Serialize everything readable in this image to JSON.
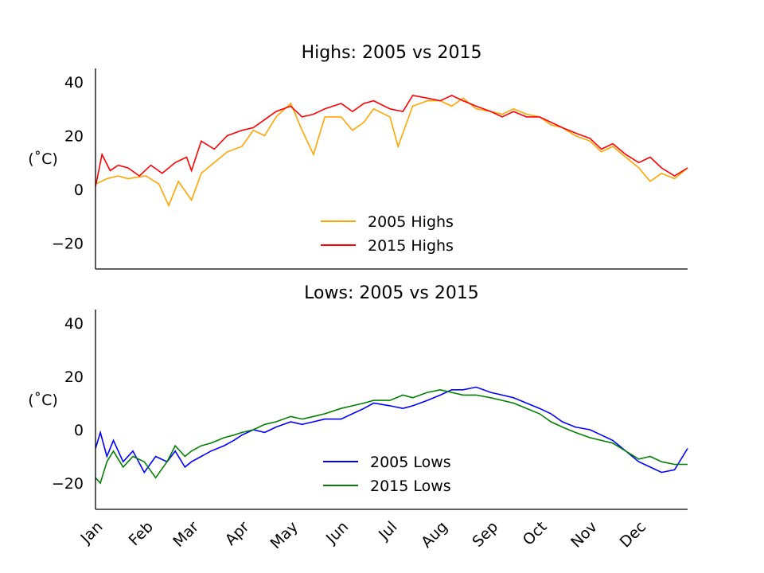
{
  "chart_data": [
    {
      "type": "line",
      "title": "Highs: 2005 vs 2015",
      "ylabel": "(˚C)",
      "ylim": [
        -30,
        45
      ],
      "yticks": [
        -20,
        0,
        20,
        40
      ],
      "ytick_labels": [
        "−20",
        "0",
        "20",
        "40"
      ],
      "grid": false,
      "legend_position": "lower-center",
      "series": [
        {
          "name": "2005 Highs",
          "color": "#FFA500",
          "x": [
            1,
            15,
            32,
            46,
            60,
            74,
            91,
            105,
            121,
            135,
            152,
            166,
            182,
            196,
            213,
            227,
            244,
            258,
            274,
            288,
            305,
            319,
            335,
            349,
            365
          ],
          "values": [
            2,
            5,
            5,
            3,
            3,
            10,
            15,
            20,
            25,
            22,
            27,
            27,
            29,
            30,
            31,
            32,
            30,
            28,
            27,
            24,
            20,
            15,
            10,
            5,
            5
          ],
          "points": [
            [
              1,
              2
            ],
            [
              8,
              4
            ],
            [
              15,
              5
            ],
            [
              21,
              4
            ],
            [
              32,
              5
            ],
            [
              40,
              2
            ],
            [
              46,
              -6
            ],
            [
              52,
              3
            ],
            [
              60,
              -4
            ],
            [
              66,
              6
            ],
            [
              74,
              10
            ],
            [
              82,
              14
            ],
            [
              91,
              16
            ],
            [
              98,
              22
            ],
            [
              105,
              20
            ],
            [
              112,
              27
            ],
            [
              121,
              32
            ],
            [
              128,
              22
            ],
            [
              135,
              13
            ],
            [
              142,
              27
            ],
            [
              152,
              27
            ],
            [
              159,
              22
            ],
            [
              166,
              25
            ],
            [
              172,
              30
            ],
            [
              182,
              27
            ],
            [
              187,
              16
            ],
            [
              196,
              31
            ],
            [
              205,
              33
            ],
            [
              213,
              33
            ],
            [
              220,
              31
            ],
            [
              227,
              34
            ],
            [
              235,
              30
            ],
            [
              244,
              29
            ],
            [
              251,
              28
            ],
            [
              258,
              30
            ],
            [
              266,
              28
            ],
            [
              274,
              27
            ],
            [
              281,
              24
            ],
            [
              288,
              23
            ],
            [
              296,
              20
            ],
            [
              305,
              18
            ],
            [
              312,
              14
            ],
            [
              319,
              16
            ],
            [
              327,
              12
            ],
            [
              335,
              8
            ],
            [
              342,
              3
            ],
            [
              349,
              6
            ],
            [
              357,
              4
            ],
            [
              365,
              8
            ]
          ]
        },
        {
          "name": "2015 Highs",
          "color": "#FF0000",
          "x": [
            1,
            15,
            32,
            46,
            60,
            74,
            91,
            105,
            121,
            135,
            152,
            166,
            182,
            196,
            213,
            227,
            244,
            258,
            274,
            288,
            305,
            319,
            335,
            349,
            365
          ],
          "values": [
            5,
            8,
            6,
            8,
            9,
            14,
            20,
            23,
            28,
            28,
            30,
            31,
            32,
            33,
            33,
            32,
            30,
            28,
            26,
            23,
            19,
            15,
            12,
            8,
            7
          ],
          "points": [
            [
              1,
              1
            ],
            [
              5,
              13
            ],
            [
              10,
              7
            ],
            [
              15,
              9
            ],
            [
              21,
              8
            ],
            [
              28,
              5
            ],
            [
              35,
              9
            ],
            [
              42,
              6
            ],
            [
              50,
              10
            ],
            [
              57,
              12
            ],
            [
              60,
              7
            ],
            [
              66,
              18
            ],
            [
              74,
              15
            ],
            [
              82,
              20
            ],
            [
              91,
              22
            ],
            [
              98,
              23
            ],
            [
              105,
              26
            ],
            [
              112,
              29
            ],
            [
              121,
              31
            ],
            [
              128,
              27
            ],
            [
              135,
              28
            ],
            [
              142,
              30
            ],
            [
              152,
              32
            ],
            [
              159,
              29
            ],
            [
              166,
              32
            ],
            [
              172,
              33
            ],
            [
              182,
              30
            ],
            [
              190,
              29
            ],
            [
              196,
              35
            ],
            [
              205,
              34
            ],
            [
              213,
              33
            ],
            [
              220,
              35
            ],
            [
              227,
              33
            ],
            [
              235,
              31
            ],
            [
              244,
              29
            ],
            [
              251,
              27
            ],
            [
              258,
              29
            ],
            [
              266,
              27
            ],
            [
              274,
              27
            ],
            [
              281,
              25
            ],
            [
              288,
              23
            ],
            [
              296,
              21
            ],
            [
              305,
              19
            ],
            [
              312,
              15
            ],
            [
              319,
              17
            ],
            [
              327,
              13
            ],
            [
              335,
              10
            ],
            [
              342,
              12
            ],
            [
              349,
              8
            ],
            [
              357,
              5
            ],
            [
              365,
              8
            ]
          ]
        }
      ]
    },
    {
      "type": "line",
      "title": "Lows: 2005 vs 2015",
      "ylabel": "(˚C)",
      "ylim": [
        -30,
        45
      ],
      "yticks": [
        -20,
        0,
        20,
        40
      ],
      "ytick_labels": [
        "−20",
        "0",
        "20",
        "40"
      ],
      "xtick_labels": [
        "Jan",
        "Feb",
        "Mar",
        "Apr",
        "May",
        "Jun",
        "Jul",
        "Aug",
        "Sep",
        "Oct",
        "Nov",
        "Dec"
      ],
      "grid": false,
      "legend_position": "lower-center",
      "series": [
        {
          "name": "2005 Lows",
          "color": "#0000FF",
          "x": [
            1,
            15,
            32,
            46,
            60,
            74,
            91,
            105,
            121,
            135,
            152,
            166,
            182,
            196,
            213,
            227,
            244,
            258,
            274,
            288,
            305,
            319,
            335,
            349,
            365
          ],
          "values": [
            -8,
            -8,
            -12,
            -12,
            -10,
            -6,
            -2,
            0,
            2,
            3,
            5,
            7,
            9,
            10,
            12,
            14,
            15,
            12,
            8,
            5,
            2,
            -3,
            -10,
            -15,
            -8
          ],
          "points": [
            [
              1,
              -7
            ],
            [
              4,
              -1
            ],
            [
              8,
              -10
            ],
            [
              12,
              -4
            ],
            [
              18,
              -12
            ],
            [
              24,
              -8
            ],
            [
              31,
              -16
            ],
            [
              38,
              -10
            ],
            [
              45,
              -12
            ],
            [
              50,
              -8
            ],
            [
              56,
              -14
            ],
            [
              60,
              -12
            ],
            [
              66,
              -10
            ],
            [
              72,
              -8
            ],
            [
              80,
              -6
            ],
            [
              86,
              -4
            ],
            [
              91,
              -2
            ],
            [
              98,
              0
            ],
            [
              105,
              -1
            ],
            [
              112,
              1
            ],
            [
              121,
              3
            ],
            [
              128,
              2
            ],
            [
              135,
              3
            ],
            [
              142,
              4
            ],
            [
              152,
              4
            ],
            [
              159,
              6
            ],
            [
              166,
              8
            ],
            [
              172,
              10
            ],
            [
              182,
              9
            ],
            [
              190,
              8
            ],
            [
              196,
              9
            ],
            [
              205,
              11
            ],
            [
              213,
              13
            ],
            [
              220,
              15
            ],
            [
              227,
              15
            ],
            [
              235,
              16
            ],
            [
              244,
              14
            ],
            [
              251,
              13
            ],
            [
              258,
              12
            ],
            [
              266,
              10
            ],
            [
              274,
              8
            ],
            [
              281,
              6
            ],
            [
              288,
              3
            ],
            [
              296,
              1
            ],
            [
              305,
              0
            ],
            [
              312,
              -2
            ],
            [
              319,
              -4
            ],
            [
              327,
              -8
            ],
            [
              335,
              -12
            ],
            [
              342,
              -14
            ],
            [
              349,
              -16
            ],
            [
              357,
              -15
            ],
            [
              365,
              -7
            ]
          ]
        },
        {
          "name": "2015 Lows",
          "color": "#008000",
          "x": [
            1,
            15,
            32,
            46,
            60,
            74,
            91,
            105,
            121,
            135,
            152,
            166,
            182,
            196,
            213,
            227,
            244,
            258,
            274,
            288,
            305,
            319,
            335,
            349,
            365
          ],
          "values": [
            -15,
            -10,
            -12,
            -10,
            -7,
            -4,
            -1,
            1,
            3,
            4,
            6,
            8,
            10,
            11,
            13,
            14,
            14,
            11,
            7,
            3,
            0,
            -4,
            -9,
            -12,
            -12
          ],
          "points": [
            [
              1,
              -18
            ],
            [
              4,
              -20
            ],
            [
              8,
              -12
            ],
            [
              12,
              -8
            ],
            [
              18,
              -14
            ],
            [
              24,
              -10
            ],
            [
              31,
              -12
            ],
            [
              38,
              -18
            ],
            [
              45,
              -12
            ],
            [
              50,
              -6
            ],
            [
              56,
              -10
            ],
            [
              60,
              -8
            ],
            [
              66,
              -6
            ],
            [
              72,
              -5
            ],
            [
              80,
              -3
            ],
            [
              86,
              -2
            ],
            [
              91,
              -1
            ],
            [
              98,
              0
            ],
            [
              105,
              2
            ],
            [
              112,
              3
            ],
            [
              121,
              5
            ],
            [
              128,
              4
            ],
            [
              135,
              5
            ],
            [
              142,
              6
            ],
            [
              152,
              8
            ],
            [
              159,
              9
            ],
            [
              166,
              10
            ],
            [
              172,
              11
            ],
            [
              182,
              11
            ],
            [
              190,
              13
            ],
            [
              196,
              12
            ],
            [
              205,
              14
            ],
            [
              213,
              15
            ],
            [
              220,
              14
            ],
            [
              227,
              13
            ],
            [
              235,
              13
            ],
            [
              244,
              12
            ],
            [
              251,
              11
            ],
            [
              258,
              10
            ],
            [
              266,
              8
            ],
            [
              274,
              6
            ],
            [
              281,
              3
            ],
            [
              288,
              1
            ],
            [
              296,
              -1
            ],
            [
              305,
              -3
            ],
            [
              312,
              -4
            ],
            [
              319,
              -5
            ],
            [
              327,
              -8
            ],
            [
              335,
              -11
            ],
            [
              342,
              -10
            ],
            [
              349,
              -12
            ],
            [
              357,
              -13
            ],
            [
              365,
              -13
            ]
          ]
        }
      ]
    }
  ]
}
